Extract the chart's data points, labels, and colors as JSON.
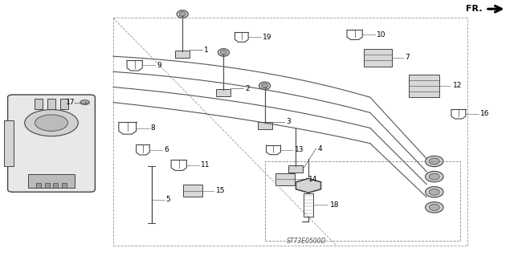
{
  "bg_color": "#ffffff",
  "diagram_code": "ST73E0500D",
  "fr_label": "FR.",
  "part_labels": [
    "1",
    "2",
    "3",
    "4",
    "5",
    "6",
    "7",
    "8",
    "9",
    "10",
    "11",
    "12",
    "13",
    "14",
    "15",
    "16",
    "17",
    "18",
    "19"
  ],
  "enclosure_dashed": true,
  "wire_color": "#555555",
  "component_color": "#444444",
  "label_fontsize": 6.5,
  "diagram_code_fontsize": 5.5
}
